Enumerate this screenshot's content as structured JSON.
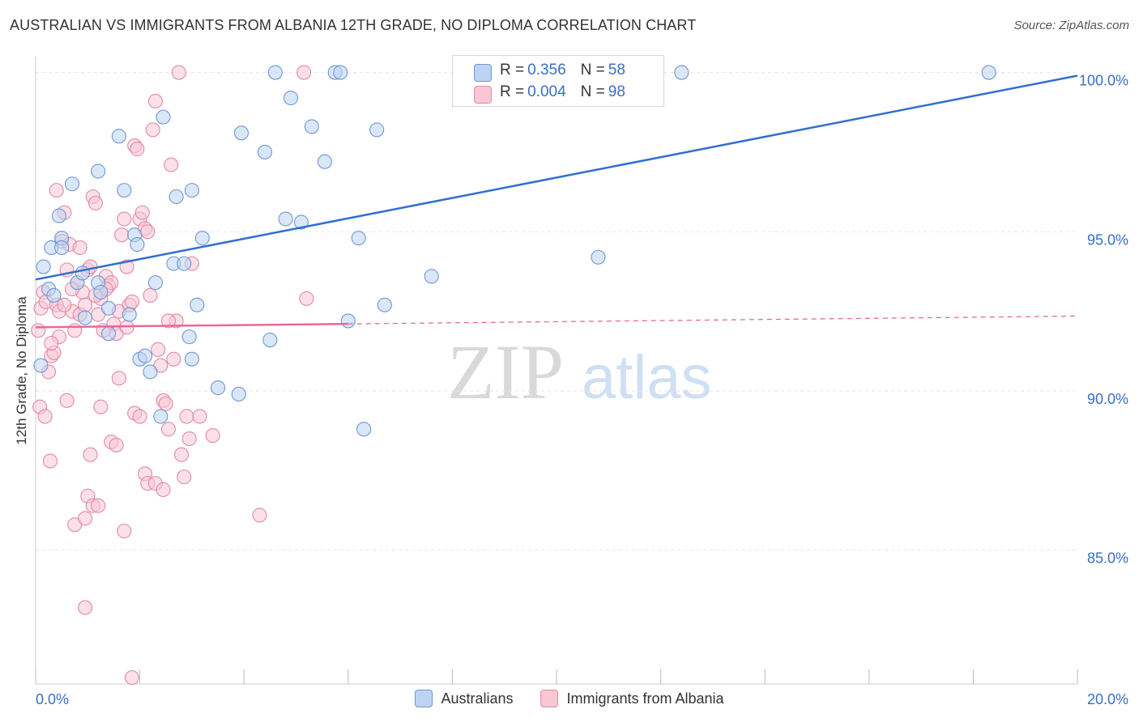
{
  "title": "AUSTRALIAN VS IMMIGRANTS FROM ALBANIA 12TH GRADE, NO DIPLOMA CORRELATION CHART",
  "source": "Source: ZipAtlas.com",
  "watermark": {
    "part1": "ZIP",
    "part2": "atlas"
  },
  "legend": {
    "rows": [
      {
        "r_label": "R = ",
        "r_value": "0.356",
        "n_label": "N = ",
        "n_value": "58"
      },
      {
        "r_label": "R = ",
        "r_value": "0.004",
        "n_label": "N = ",
        "n_value": "98"
      }
    ],
    "series": [
      "Australians",
      "Immigrants from Albania"
    ]
  },
  "colors": {
    "blue_fill": "#bcd3f2",
    "blue_stroke": "#6f97d4",
    "blue_line": "#2f6fd0",
    "pink_fill": "#f8c6d4",
    "pink_stroke": "#e28aa6",
    "pink_line": "#e8689a",
    "grid": "#e6e6e6",
    "axis_label": "#3a6fc4"
  },
  "chart_data": {
    "type": "scatter",
    "title": "AUSTRALIAN VS IMMIGRANTS FROM ALBANIA 12TH GRADE, NO DIPLOMA CORRELATION CHART",
    "xlabel": "",
    "ylabel": "12th Grade, No Diploma",
    "xlim": [
      0,
      20
    ],
    "ylim": [
      80.8,
      100.7
    ],
    "x_tick_labels": [
      "0.0%",
      "20.0%"
    ],
    "y_ticks": [
      {
        "value": 100,
        "label": "100.0%"
      },
      {
        "value": 95,
        "label": "95.0%"
      },
      {
        "value": 90,
        "label": "90.0%"
      },
      {
        "value": 85,
        "label": "85.0%"
      }
    ],
    "series": [
      {
        "name": "Australians",
        "r": 0.356,
        "n": 58,
        "trend": {
          "x": [
            0,
            20
          ],
          "y": [
            93.5,
            99.9
          ],
          "dashed_from": null
        },
        "points": [
          [
            0.15,
            93.9
          ],
          [
            0.3,
            94.5
          ],
          [
            0.45,
            95.5
          ],
          [
            0.5,
            94.8
          ],
          [
            0.5,
            94.5
          ],
          [
            0.7,
            96.5
          ],
          [
            0.8,
            93.4
          ],
          [
            0.25,
            93.2
          ],
          [
            1.2,
            93.4
          ],
          [
            1.25,
            93.1
          ],
          [
            1.4,
            92.6
          ],
          [
            0.95,
            92.3
          ],
          [
            0.9,
            93.7
          ],
          [
            0.1,
            90.8
          ],
          [
            1.2,
            96.9
          ],
          [
            1.6,
            98.0
          ],
          [
            1.7,
            96.3
          ],
          [
            1.9,
            94.9
          ],
          [
            1.95,
            94.6
          ],
          [
            2.3,
            93.4
          ],
          [
            2.0,
            91.0
          ],
          [
            2.1,
            91.1
          ],
          [
            2.2,
            90.6
          ],
          [
            2.4,
            89.2
          ],
          [
            2.45,
            98.6
          ],
          [
            2.7,
            96.1
          ],
          [
            2.65,
            94.0
          ],
          [
            2.85,
            94.0
          ],
          [
            3.0,
            96.3
          ],
          [
            3.2,
            94.8
          ],
          [
            3.1,
            92.7
          ],
          [
            2.95,
            91.7
          ],
          [
            3.0,
            91.0
          ],
          [
            3.5,
            90.1
          ],
          [
            3.9,
            89.9
          ],
          [
            3.95,
            98.1
          ],
          [
            4.4,
            97.5
          ],
          [
            4.5,
            91.6
          ],
          [
            4.8,
            95.4
          ],
          [
            4.6,
            100.0
          ],
          [
            4.9,
            99.2
          ],
          [
            5.1,
            95.3
          ],
          [
            5.3,
            98.3
          ],
          [
            5.55,
            97.2
          ],
          [
            5.75,
            100.0
          ],
          [
            5.85,
            100.0
          ],
          [
            6.0,
            92.2
          ],
          [
            6.2,
            94.8
          ],
          [
            6.3,
            88.8
          ],
          [
            6.55,
            98.2
          ],
          [
            6.7,
            92.7
          ],
          [
            7.6,
            93.6
          ],
          [
            10.8,
            94.2
          ],
          [
            12.4,
            100.0
          ],
          [
            18.3,
            100.0
          ],
          [
            1.4,
            91.8
          ],
          [
            1.8,
            92.4
          ],
          [
            0.35,
            93.0
          ]
        ]
      },
      {
        "name": "Immigrants from Albania",
        "r": 0.004,
        "n": 98,
        "trend": {
          "x": [
            0,
            20
          ],
          "y": [
            92.0,
            92.35
          ],
          "dashed_from": 6.0
        },
        "points": [
          [
            0.05,
            91.9
          ],
          [
            0.1,
            92.6
          ],
          [
            0.15,
            93.1
          ],
          [
            0.2,
            92.8
          ],
          [
            0.25,
            90.6
          ],
          [
            0.3,
            91.1
          ],
          [
            0.35,
            91.2
          ],
          [
            0.4,
            92.7
          ],
          [
            0.45,
            92.5
          ],
          [
            0.5,
            94.7
          ],
          [
            0.55,
            95.6
          ],
          [
            0.6,
            93.8
          ],
          [
            0.65,
            94.6
          ],
          [
            0.7,
            92.5
          ],
          [
            0.75,
            91.9
          ],
          [
            0.8,
            93.4
          ],
          [
            0.85,
            92.4
          ],
          [
            0.9,
            93.1
          ],
          [
            0.95,
            92.7
          ],
          [
            1.0,
            93.8
          ],
          [
            1.05,
            93.9
          ],
          [
            1.1,
            96.1
          ],
          [
            1.15,
            95.9
          ],
          [
            1.2,
            92.4
          ],
          [
            1.25,
            92.9
          ],
          [
            1.3,
            91.9
          ],
          [
            1.35,
            93.6
          ],
          [
            1.4,
            93.3
          ],
          [
            1.45,
            93.4
          ],
          [
            1.5,
            92.1
          ],
          [
            1.55,
            91.8
          ],
          [
            1.6,
            92.5
          ],
          [
            1.65,
            94.9
          ],
          [
            1.7,
            95.4
          ],
          [
            1.75,
            93.9
          ],
          [
            1.8,
            92.7
          ],
          [
            1.85,
            92.8
          ],
          [
            1.9,
            97.7
          ],
          [
            1.95,
            97.6
          ],
          [
            2.0,
            95.4
          ],
          [
            2.05,
            95.6
          ],
          [
            2.1,
            95.1
          ],
          [
            2.15,
            95.0
          ],
          [
            2.2,
            93.0
          ],
          [
            2.25,
            98.2
          ],
          [
            2.3,
            99.1
          ],
          [
            2.35,
            91.3
          ],
          [
            2.4,
            90.8
          ],
          [
            2.45,
            89.7
          ],
          [
            2.5,
            89.6
          ],
          [
            2.55,
            88.8
          ],
          [
            2.6,
            97.1
          ],
          [
            2.65,
            91.0
          ],
          [
            2.7,
            92.2
          ],
          [
            2.75,
            100.0
          ],
          [
            2.8,
            88.0
          ],
          [
            2.85,
            87.3
          ],
          [
            2.9,
            89.2
          ],
          [
            2.95,
            88.5
          ],
          [
            3.0,
            94.0
          ],
          [
            0.08,
            89.5
          ],
          [
            0.18,
            89.2
          ],
          [
            0.28,
            87.8
          ],
          [
            0.6,
            89.7
          ],
          [
            0.75,
            85.8
          ],
          [
            0.95,
            86.0
          ],
          [
            1.0,
            86.7
          ],
          [
            1.1,
            86.4
          ],
          [
            1.2,
            86.4
          ],
          [
            0.95,
            83.2
          ],
          [
            1.45,
            88.4
          ],
          [
            1.55,
            88.3
          ],
          [
            1.7,
            85.6
          ],
          [
            1.9,
            89.3
          ],
          [
            2.1,
            87.4
          ],
          [
            2.15,
            87.1
          ],
          [
            2.3,
            87.1
          ],
          [
            2.45,
            86.9
          ],
          [
            3.15,
            89.2
          ],
          [
            3.4,
            88.6
          ],
          [
            1.85,
            81.0
          ],
          [
            4.3,
            86.1
          ],
          [
            5.2,
            92.9
          ],
          [
            5.15,
            100.0
          ],
          [
            0.4,
            96.3
          ],
          [
            0.85,
            94.5
          ],
          [
            1.05,
            88.0
          ],
          [
            0.55,
            92.7
          ],
          [
            1.25,
            89.5
          ],
          [
            1.6,
            90.4
          ],
          [
            0.45,
            91.7
          ],
          [
            0.7,
            93.2
          ],
          [
            2.0,
            89.2
          ],
          [
            1.35,
            93.2
          ],
          [
            1.75,
            92.0
          ],
          [
            0.3,
            91.5
          ],
          [
            2.55,
            92.2
          ],
          [
            1.15,
            93.0
          ]
        ]
      }
    ]
  }
}
